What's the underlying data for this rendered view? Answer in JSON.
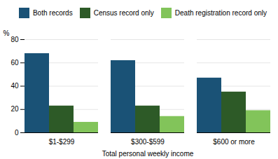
{
  "chart_data": {
    "type": "bar",
    "categories": [
      "$1-$299",
      "$300-$599",
      "$600 or more"
    ],
    "series": [
      {
        "name": "Both records",
        "values": [
          68,
          62,
          47
        ],
        "color": "#1a5276"
      },
      {
        "name": "Census record only",
        "values": [
          23,
          23,
          35
        ],
        "color": "#2d5a27"
      },
      {
        "name": "Death registration record only",
        "values": [
          9,
          14,
          19
        ],
        "color": "#82c45a"
      }
    ],
    "ylim": [
      0,
      80
    ],
    "yticks": [
      0,
      20,
      40,
      60,
      80
    ],
    "ylabel": "%",
    "xlabel": "Total personal weekly income",
    "legend": "upper right",
    "grid": true
  }
}
